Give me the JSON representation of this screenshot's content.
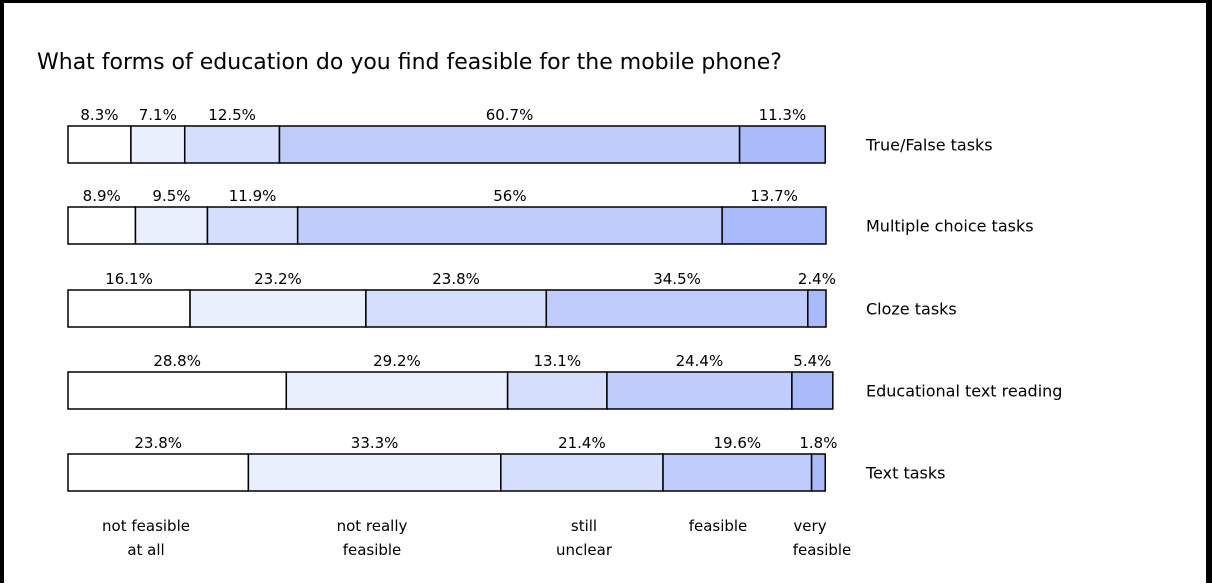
{
  "chart_data": {
    "type": "bar",
    "orientation": "horizontal",
    "stacked": true,
    "title": "What forms of education do you find feasible for the mobile phone?",
    "categories": [
      "True/False tasks",
      "Multiple choice tasks",
      "Cloze tasks",
      "Educational text reading",
      "Text tasks"
    ],
    "series": [
      {
        "name": "not feasible at all",
        "name_lines": [
          "not feasible",
          "at all"
        ],
        "color": "#ffffff",
        "values": [
          8.3,
          8.9,
          16.1,
          28.8,
          23.8
        ],
        "labels": [
          "8.3%",
          "8.9%",
          "16.1%",
          "28.8%",
          "23.8%"
        ]
      },
      {
        "name": "not really feasible",
        "name_lines": [
          "not really",
          "feasible"
        ],
        "color": "#eaeffe",
        "values": [
          7.1,
          9.5,
          23.2,
          29.2,
          33.3
        ],
        "labels": [
          "7.1%",
          "9.5%",
          "23.2%",
          "29.2%",
          "33.3%"
        ]
      },
      {
        "name": "still unclear",
        "name_lines": [
          "still",
          "unclear"
        ],
        "color": "#d5defc",
        "values": [
          12.5,
          11.9,
          23.8,
          13.1,
          21.4
        ],
        "labels": [
          "12.5%",
          "11.9%",
          "23.8%",
          "13.1%",
          "21.4%"
        ]
      },
      {
        "name": "feasible",
        "name_lines": [
          "feasible"
        ],
        "color": "#bfccfc",
        "values": [
          60.7,
          56,
          34.5,
          24.4,
          19.6
        ],
        "labels": [
          "60.7%",
          "56%",
          "34.5%",
          "24.4%",
          "19.6%"
        ]
      },
      {
        "name": "very feasible",
        "name_lines": [
          "very",
          "feasible"
        ],
        "color": "#a9bafa",
        "values": [
          11.3,
          13.7,
          2.4,
          5.4,
          1.8
        ],
        "labels": [
          "11.3%",
          "13.7%",
          "2.4%",
          "5.4%",
          "1.8%"
        ]
      }
    ],
    "xlim": [
      0,
      100
    ],
    "grid": false,
    "legend": "bottom"
  }
}
